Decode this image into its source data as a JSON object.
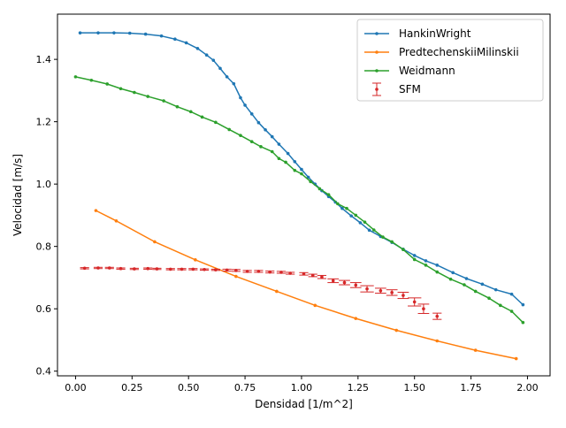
{
  "chart_data": {
    "type": "line",
    "title": "",
    "xlabel": "Densidad [1/m^2]",
    "ylabel": "Velocidad [m/s]",
    "xlim": [
      -0.08,
      2.1
    ],
    "ylim": [
      0.385,
      1.545
    ],
    "xticks": [
      0.0,
      0.25,
      0.5,
      0.75,
      1.0,
      1.25,
      1.5,
      1.75,
      2.0
    ],
    "xtick_labels": [
      "0.00",
      "0.25",
      "0.50",
      "0.75",
      "1.00",
      "1.25",
      "1.50",
      "1.75",
      "2.00"
    ],
    "yticks": [
      0.4,
      0.6,
      0.8,
      1.0,
      1.2,
      1.4
    ],
    "ytick_labels": [
      "0.4",
      "0.6",
      "0.8",
      "1.0",
      "1.2",
      "1.4"
    ],
    "grid": false,
    "legend_position": "upper right",
    "series": [
      {
        "name": "HankinWright",
        "color": "#1f77b4",
        "style": "line",
        "x": [
          0.02,
          0.1,
          0.17,
          0.24,
          0.31,
          0.38,
          0.44,
          0.49,
          0.54,
          0.58,
          0.61,
          0.64,
          0.67,
          0.7,
          0.73,
          0.75,
          0.78,
          0.81,
          0.84,
          0.87,
          0.9,
          0.94,
          0.97,
          1.0,
          1.03,
          1.06,
          1.09,
          1.12,
          1.15,
          1.18,
          1.22,
          1.26,
          1.3,
          1.35,
          1.4,
          1.45,
          1.5,
          1.55,
          1.6,
          1.67,
          1.73,
          1.8,
          1.86,
          1.93,
          1.98
        ],
        "y": [
          1.485,
          1.485,
          1.485,
          1.484,
          1.481,
          1.475,
          1.465,
          1.453,
          1.435,
          1.414,
          1.397,
          1.371,
          1.344,
          1.322,
          1.277,
          1.253,
          1.225,
          1.197,
          1.174,
          1.152,
          1.128,
          1.098,
          1.072,
          1.047,
          1.022,
          1.0,
          0.979,
          0.96,
          0.942,
          0.922,
          0.898,
          0.876,
          0.852,
          0.832,
          0.813,
          0.791,
          0.771,
          0.754,
          0.74,
          0.716,
          0.697,
          0.679,
          0.661,
          0.647,
          0.613
        ]
      },
      {
        "name": "PredtechenskiiMilinskii",
        "color": "#ff7f0e",
        "style": "line",
        "x": [
          0.09,
          0.18,
          0.35,
          0.53,
          0.71,
          0.89,
          1.06,
          1.24,
          1.42,
          1.6,
          1.77,
          1.95
        ],
        "y": [
          0.915,
          0.882,
          0.815,
          0.757,
          0.704,
          0.656,
          0.611,
          0.569,
          0.531,
          0.497,
          0.467,
          0.44
        ]
      },
      {
        "name": "Weidmann",
        "color": "#2ca02c",
        "style": "line",
        "x": [
          0.0,
          0.07,
          0.14,
          0.2,
          0.26,
          0.32,
          0.39,
          0.45,
          0.51,
          0.56,
          0.62,
          0.68,
          0.73,
          0.78,
          0.82,
          0.87,
          0.9,
          0.93,
          0.97,
          1.0,
          1.04,
          1.08,
          1.12,
          1.16,
          1.2,
          1.24,
          1.28,
          1.32,
          1.36,
          1.4,
          1.45,
          1.5,
          1.55,
          1.6,
          1.66,
          1.72,
          1.77,
          1.83,
          1.88,
          1.93,
          1.98
        ],
        "y": [
          1.344,
          1.333,
          1.321,
          1.306,
          1.294,
          1.281,
          1.267,
          1.248,
          1.232,
          1.215,
          1.198,
          1.175,
          1.156,
          1.136,
          1.12,
          1.104,
          1.082,
          1.07,
          1.044,
          1.033,
          1.008,
          0.985,
          0.966,
          0.937,
          0.922,
          0.9,
          0.878,
          0.853,
          0.83,
          0.815,
          0.79,
          0.758,
          0.74,
          0.718,
          0.695,
          0.677,
          0.656,
          0.634,
          0.611,
          0.592,
          0.556
        ]
      },
      {
        "name": "SFM",
        "color": "#d62728",
        "style": "errorbar",
        "x": [
          0.04,
          0.1,
          0.15,
          0.2,
          0.26,
          0.32,
          0.36,
          0.42,
          0.47,
          0.52,
          0.57,
          0.62,
          0.67,
          0.71,
          0.76,
          0.81,
          0.86,
          0.91,
          0.95,
          1.01,
          1.05,
          1.09,
          1.14,
          1.19,
          1.24,
          1.29,
          1.35,
          1.4,
          1.45,
          1.5,
          1.54,
          1.6
        ],
        "y": [
          0.73,
          0.731,
          0.731,
          0.729,
          0.728,
          0.729,
          0.728,
          0.727,
          0.727,
          0.727,
          0.726,
          0.725,
          0.724,
          0.723,
          0.72,
          0.72,
          0.718,
          0.717,
          0.714,
          0.712,
          0.707,
          0.702,
          0.69,
          0.684,
          0.676,
          0.664,
          0.658,
          0.652,
          0.643,
          0.622,
          0.6,
          0.576
        ],
        "yerr": [
          0.002,
          0.002,
          0.002,
          0.002,
          0.002,
          0.002,
          0.002,
          0.002,
          0.002,
          0.002,
          0.002,
          0.002,
          0.003,
          0.003,
          0.003,
          0.003,
          0.003,
          0.003,
          0.003,
          0.004,
          0.004,
          0.005,
          0.006,
          0.007,
          0.008,
          0.01,
          0.008,
          0.009,
          0.01,
          0.013,
          0.015,
          0.01
        ],
        "xerr": [
          0.02,
          0.02,
          0.02,
          0.02,
          0.02,
          0.02,
          0.02,
          0.02,
          0.02,
          0.02,
          0.02,
          0.02,
          0.02,
          0.02,
          0.02,
          0.02,
          0.02,
          0.02,
          0.02,
          0.02,
          0.02,
          0.02,
          0.025,
          0.025,
          0.025,
          0.03,
          0.025,
          0.025,
          0.025,
          0.03,
          0.025,
          0.02
        ]
      }
    ]
  }
}
